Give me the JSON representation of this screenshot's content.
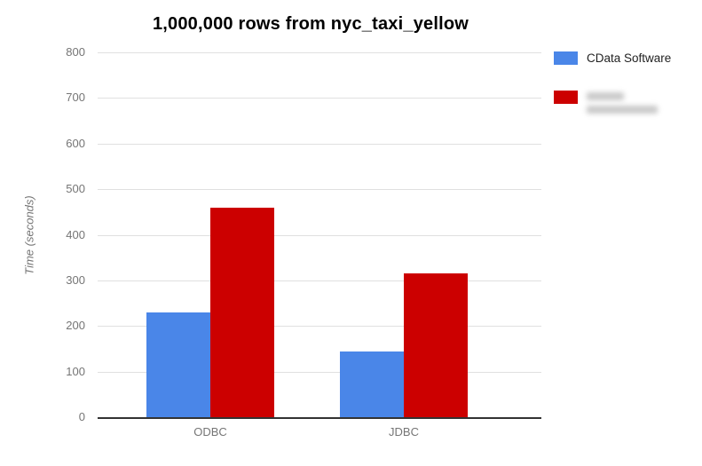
{
  "chart_data": {
    "type": "bar",
    "title": "1,000,000 rows from nyc_taxi_yellow",
    "xlabel": "",
    "ylabel": "Time (seconds)",
    "categories": [
      "ODBC",
      "JDBC"
    ],
    "series": [
      {
        "name": "CData Software",
        "color": "#4a86e8",
        "values": [
          230,
          145
        ],
        "label_redacted": false
      },
      {
        "name": "",
        "color": "#cc0000",
        "values": [
          460,
          315
        ],
        "label_redacted": true
      }
    ],
    "ylim": [
      0,
      800
    ],
    "yticks": [
      0,
      100,
      200,
      300,
      400,
      500,
      600,
      700,
      800
    ],
    "grid": true,
    "legend_position": "right",
    "colors": {
      "gridline": "#e0e0e0",
      "axis_line": "#333333",
      "tick_text": "#757575",
      "legend_text": "#222222",
      "title_text": "#000000"
    }
  }
}
